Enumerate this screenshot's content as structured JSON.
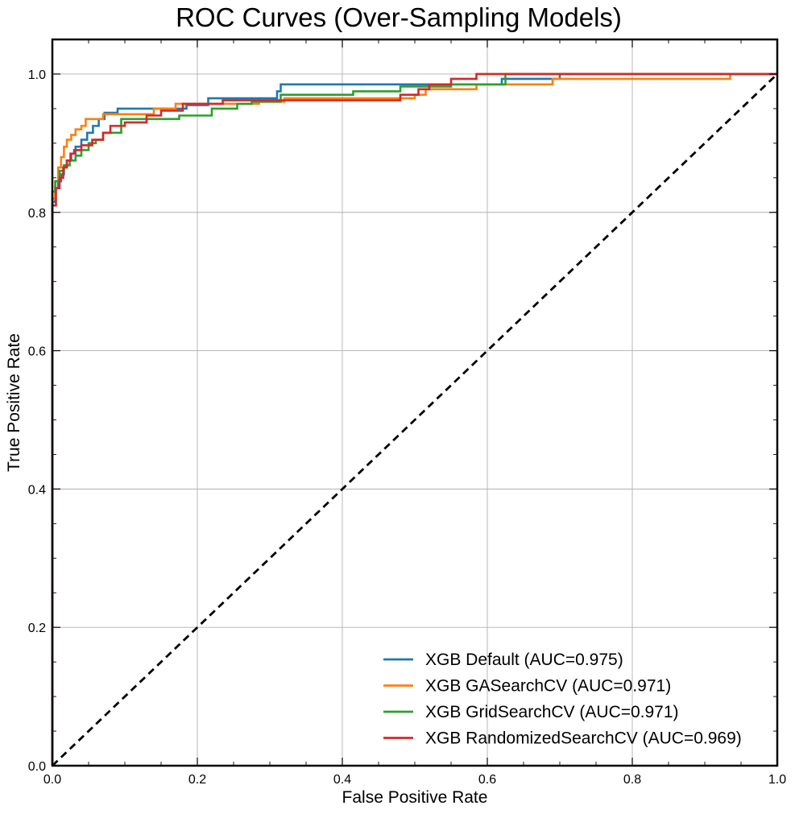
{
  "chart_data": {
    "type": "line",
    "title": "ROC Curves (Over-Sampling Models)",
    "xlabel": "False Positive Rate",
    "ylabel": "True Positive Rate",
    "xlim": [
      0.0,
      1.0
    ],
    "ylim": [
      0.0,
      1.05
    ],
    "xticks": [
      "0.0",
      "0.2",
      "0.4",
      "0.6",
      "0.8",
      "1.0"
    ],
    "yticks": [
      "0.0",
      "0.2",
      "0.4",
      "0.6",
      "0.8",
      "1.0"
    ],
    "grid": true,
    "legend_position": "lower-right",
    "series": [
      {
        "name": "XGB Default (AUC=0.975)",
        "color": "#1f77b4",
        "x": [
          0,
          0,
          0.004,
          0.004,
          0.008,
          0.008,
          0.012,
          0.012,
          0.016,
          0.016,
          0.02,
          0.02,
          0.026,
          0.026,
          0.032,
          0.032,
          0.04,
          0.04,
          0.048,
          0.048,
          0.056,
          0.056,
          0.064,
          0.064,
          0.072,
          0.072,
          0.09,
          0.09,
          0.185,
          0.185,
          0.215,
          0.215,
          0.31,
          0.31,
          0.315,
          0.315,
          0.62,
          0.62,
          0.7,
          0.7,
          1.0
        ],
        "y": [
          0,
          0.815,
          0.815,
          0.835,
          0.835,
          0.845,
          0.845,
          0.855,
          0.855,
          0.865,
          0.865,
          0.875,
          0.875,
          0.885,
          0.885,
          0.895,
          0.895,
          0.905,
          0.905,
          0.915,
          0.915,
          0.925,
          0.925,
          0.935,
          0.935,
          0.944,
          0.944,
          0.95,
          0.95,
          0.955,
          0.955,
          0.965,
          0.965,
          0.975,
          0.975,
          0.985,
          0.985,
          0.993,
          0.993,
          1.0,
          1.0
        ]
      },
      {
        "name": "XGB GASearchCV (AUC=0.971)",
        "color": "#ff7f0e",
        "x": [
          0,
          0,
          0.004,
          0.004,
          0.008,
          0.008,
          0.012,
          0.012,
          0.016,
          0.016,
          0.02,
          0.02,
          0.026,
          0.026,
          0.032,
          0.032,
          0.04,
          0.04,
          0.046,
          0.046,
          0.056,
          0.056,
          0.07,
          0.07,
          0.085,
          0.085,
          0.14,
          0.14,
          0.17,
          0.17,
          0.285,
          0.285,
          0.32,
          0.32,
          0.5,
          0.5,
          0.515,
          0.515,
          0.585,
          0.585,
          0.69,
          0.69,
          0.86,
          0.86,
          0.935,
          0.935,
          1.0
        ],
        "y": [
          0,
          0.82,
          0.82,
          0.845,
          0.845,
          0.865,
          0.865,
          0.88,
          0.88,
          0.895,
          0.895,
          0.905,
          0.905,
          0.912,
          0.912,
          0.92,
          0.92,
          0.925,
          0.925,
          0.935,
          0.935,
          0.935,
          0.935,
          0.942,
          0.942,
          0.942,
          0.942,
          0.95,
          0.95,
          0.957,
          0.957,
          0.96,
          0.96,
          0.965,
          0.965,
          0.97,
          0.97,
          0.978,
          0.978,
          0.985,
          0.985,
          0.993,
          0.993,
          0.993,
          0.993,
          1.0,
          1.0
        ]
      },
      {
        "name": "XGB GridSearchCV (AUC=0.971)",
        "color": "#2ca02c",
        "x": [
          0,
          0,
          0.004,
          0.004,
          0.01,
          0.01,
          0.016,
          0.016,
          0.024,
          0.024,
          0.032,
          0.032,
          0.04,
          0.04,
          0.05,
          0.05,
          0.06,
          0.06,
          0.07,
          0.07,
          0.095,
          0.095,
          0.175,
          0.175,
          0.22,
          0.22,
          0.255,
          0.255,
          0.275,
          0.275,
          0.315,
          0.315,
          0.415,
          0.415,
          0.48,
          0.48,
          0.55,
          0.55,
          0.625,
          0.625,
          0.86,
          0.86,
          1.0
        ],
        "y": [
          0,
          0.83,
          0.83,
          0.845,
          0.845,
          0.86,
          0.86,
          0.868,
          0.868,
          0.875,
          0.875,
          0.882,
          0.882,
          0.89,
          0.89,
          0.9,
          0.9,
          0.905,
          0.905,
          0.915,
          0.915,
          0.935,
          0.935,
          0.94,
          0.94,
          0.95,
          0.95,
          0.957,
          0.957,
          0.96,
          0.96,
          0.97,
          0.97,
          0.975,
          0.975,
          0.982,
          0.982,
          0.985,
          0.985,
          1.0,
          1.0,
          1.0,
          1.0
        ]
      },
      {
        "name": "XGB RandomizedSearchCV (AUC=0.969)",
        "color": "#d62728",
        "x": [
          0,
          0,
          0.005,
          0.005,
          0.01,
          0.01,
          0.015,
          0.015,
          0.02,
          0.02,
          0.025,
          0.025,
          0.03,
          0.03,
          0.04,
          0.04,
          0.055,
          0.055,
          0.07,
          0.07,
          0.08,
          0.08,
          0.1,
          0.1,
          0.13,
          0.13,
          0.15,
          0.15,
          0.18,
          0.18,
          0.235,
          0.235,
          0.48,
          0.48,
          0.505,
          0.505,
          0.52,
          0.52,
          0.55,
          0.55,
          0.585,
          0.585,
          1.0
        ],
        "y": [
          0,
          0.81,
          0.81,
          0.835,
          0.835,
          0.85,
          0.85,
          0.865,
          0.865,
          0.875,
          0.875,
          0.885,
          0.885,
          0.89,
          0.89,
          0.897,
          0.897,
          0.905,
          0.905,
          0.915,
          0.915,
          0.925,
          0.925,
          0.93,
          0.93,
          0.94,
          0.94,
          0.947,
          0.947,
          0.957,
          0.957,
          0.962,
          0.962,
          0.97,
          0.97,
          0.978,
          0.978,
          0.985,
          0.985,
          0.993,
          0.993,
          1.0,
          1.0
        ]
      },
      {
        "name": "",
        "color": "#000000",
        "style": "dashed",
        "x": [
          0,
          1
        ],
        "y": [
          0,
          1
        ]
      }
    ]
  }
}
